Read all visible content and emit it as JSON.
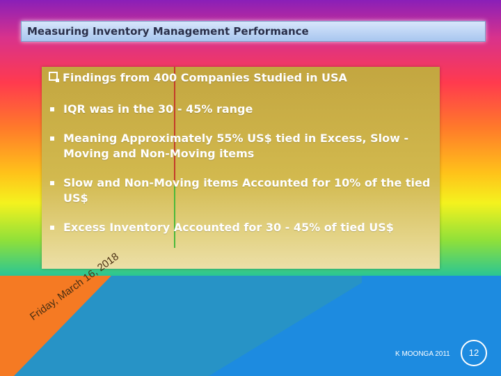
{
  "title": "Measuring Inventory Management Performance",
  "panel": {
    "heading": "Findings from 400 Companies Studied in USA",
    "bullets": [
      "IQR was in the 30 - 45% range",
      "Meaning Approximately 55% US$ tied in Excess, Slow -Moving and Non-Moving items",
      "Slow and Non-Moving items Accounted for 10% of the tied US$",
      "Excess Inventory Accounted for 30 - 45% of tied US$"
    ]
  },
  "footer": {
    "date": "Friday, March 16, 2018",
    "author": "K MOONGA 2011",
    "slide_number": "12"
  }
}
